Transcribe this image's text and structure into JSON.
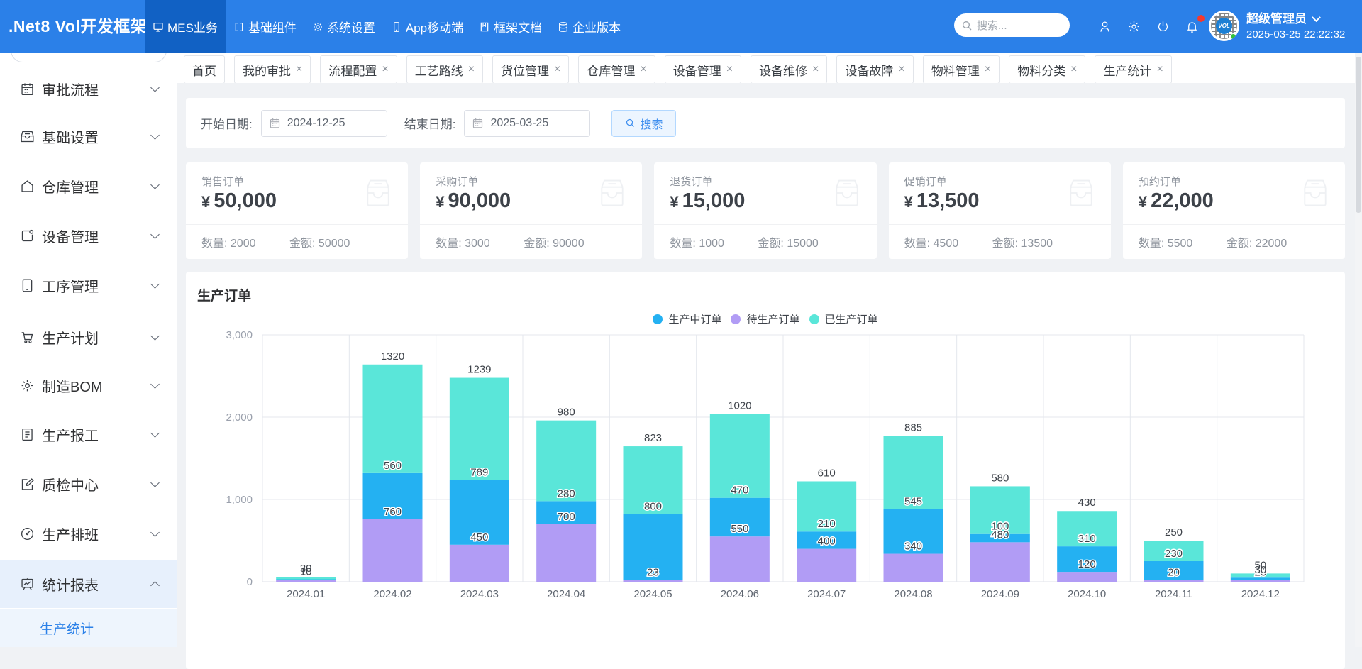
{
  "navbar": {
    "logo": ".Net8 Vol开发框架",
    "menu": [
      {
        "label": "MES业务",
        "icon": "monitor-icon",
        "active": true
      },
      {
        "label": "基础组件",
        "icon": "brackets-icon",
        "active": false
      },
      {
        "label": "系统设置",
        "icon": "gear-icon",
        "active": false
      },
      {
        "label": "App移动端",
        "icon": "phone-icon",
        "active": false
      },
      {
        "label": "框架文档",
        "icon": "document-icon",
        "active": false
      },
      {
        "label": "企业版本",
        "icon": "database-icon",
        "active": false
      }
    ],
    "search_placeholder": "搜索...",
    "user_name": "超级管理员",
    "datetime": "2025-03-25 22:22:32",
    "avatar_badge": "VOL"
  },
  "sidebar": {
    "items": [
      {
        "label": "审批流程",
        "icon": "calendar-icon"
      },
      {
        "label": "基础设置",
        "icon": "inbox-icon"
      },
      {
        "label": "仓库管理",
        "icon": "home-icon"
      },
      {
        "label": "设备管理",
        "icon": "device-icon"
      },
      {
        "label": "工序管理",
        "icon": "tablet-icon"
      },
      {
        "label": "生产计划",
        "icon": "cart-icon"
      },
      {
        "label": "制造BOM",
        "icon": "gear-icon"
      },
      {
        "label": "生产报工",
        "icon": "file-icon"
      },
      {
        "label": "质检中心",
        "icon": "edit-icon"
      },
      {
        "label": "生产排班",
        "icon": "clock-icon"
      },
      {
        "label": "统计报表",
        "icon": "chart-board-icon",
        "expanded": true
      }
    ],
    "active_sub": "生产统计"
  },
  "tabs": [
    {
      "label": "首页",
      "closable": false
    },
    {
      "label": "我的审批",
      "closable": true
    },
    {
      "label": "流程配置",
      "closable": true
    },
    {
      "label": "工艺路线",
      "closable": true
    },
    {
      "label": "货位管理",
      "closable": true
    },
    {
      "label": "仓库管理",
      "closable": true
    },
    {
      "label": "设备管理",
      "closable": true
    },
    {
      "label": "设备维修",
      "closable": true
    },
    {
      "label": "设备故障",
      "closable": true
    },
    {
      "label": "物料管理",
      "closable": true
    },
    {
      "label": "物料分类",
      "closable": true
    },
    {
      "label": "生产统计",
      "closable": true
    }
  ],
  "filter": {
    "start_label": "开始日期:",
    "start_value": "2024-12-25",
    "end_label": "结束日期:",
    "end_value": "2025-03-25",
    "search_label": "搜索"
  },
  "stat_cards": [
    {
      "title": "销售订单",
      "amount": "50,000",
      "qty_label": "数量:",
      "qty": "2000",
      "amt_label": "金额:",
      "amt": "50000"
    },
    {
      "title": "采购订单",
      "amount": "90,000",
      "qty_label": "数量:",
      "qty": "3000",
      "amt_label": "金额:",
      "amt": "90000"
    },
    {
      "title": "退货订单",
      "amount": "15,000",
      "qty_label": "数量:",
      "qty": "1000",
      "amt_label": "金额:",
      "amt": "15000"
    },
    {
      "title": "促销订单",
      "amount": "13,500",
      "qty_label": "数量:",
      "qty": "4500",
      "amt_label": "金额:",
      "amt": "13500"
    },
    {
      "title": "预约订单",
      "amount": "22,000",
      "qty_label": "数量:",
      "qty": "5500",
      "amt_label": "金额:",
      "amt": "22000"
    }
  ],
  "chart_data": {
    "type": "bar",
    "title": "生产订单",
    "stacked": true,
    "categories": [
      "2024.01",
      "2024.02",
      "2024.03",
      "2024.04",
      "2024.05",
      "2024.06",
      "2024.07",
      "2024.08",
      "2024.09",
      "2024.10",
      "2024.11",
      "2024.12"
    ],
    "series": [
      {
        "name": "生产中订单",
        "color": "#24b1f2",
        "values": [
          10,
          560,
          789,
          280,
          800,
          470,
          210,
          545,
          100,
          310,
          230,
          30
        ]
      },
      {
        "name": "待生产订单",
        "color": "#b19cf5",
        "values": [
          20,
          760,
          450,
          700,
          23,
          550,
          400,
          340,
          480,
          120,
          20,
          20
        ]
      },
      {
        "name": "已生产订单",
        "color": "#5ae6d9",
        "values": [
          30,
          1320,
          1239,
          980,
          823,
          1020,
          610,
          885,
          580,
          430,
          250,
          50
        ]
      }
    ],
    "stack_order": [
      "待生产订单",
      "生产中订单",
      "已生产订单"
    ],
    "ylim": [
      0,
      3000
    ],
    "yticks": [
      0,
      1000,
      2000,
      3000
    ],
    "grid": true,
    "legend_position": "top"
  }
}
